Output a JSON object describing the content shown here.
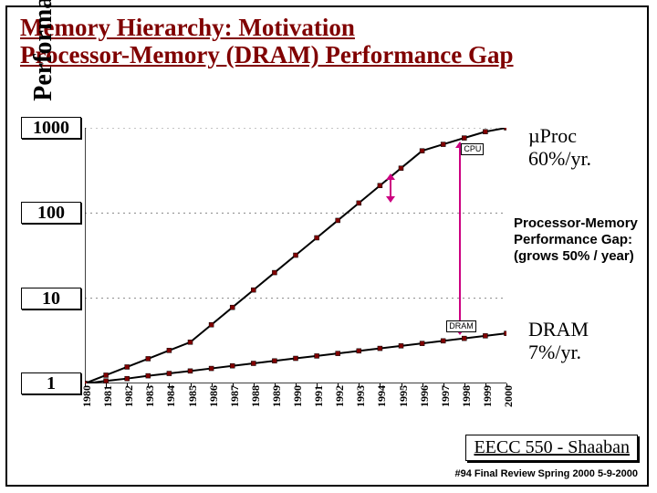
{
  "title_line1": "Memory Hierarchy:  Motivation",
  "title_line2": "Processor-Memory (DRAM) Performance Gap",
  "ylabel": "Performance",
  "chart": {
    "type": "line",
    "log_y": true,
    "ylim": [
      1,
      1000
    ],
    "yticklabels": [
      "1",
      "10",
      "100",
      "1000"
    ],
    "ytickvals": [
      1,
      10,
      100,
      1000
    ],
    "xlim": [
      1980,
      2000
    ],
    "xticklabels": [
      "1980",
      "1981",
      "1982",
      "1983",
      "1984",
      "1985",
      "1986",
      "1987",
      "1988",
      "1989",
      "1990",
      "1991",
      "1992",
      "1993",
      "1994",
      "1995",
      "1996",
      "1997",
      "1998",
      "1999",
      "2000"
    ],
    "grid_color": "#888888",
    "background_color": "#ffffff",
    "axis_color": "#000000",
    "line_color": "#000000",
    "marker_color": "#800000",
    "series": {
      "cpu": {
        "label": "CPU",
        "label_pos_year": 1998.2,
        "values": {
          "1980": 1.0,
          "1981": 1.25,
          "1982": 1.56,
          "1983": 1.95,
          "1984": 2.44,
          "1985": 3.05,
          "1986": 4.88,
          "1987": 7.81,
          "1988": 12.5,
          "1989": 20.0,
          "1990": 32.0,
          "1991": 51.2,
          "1992": 81.9,
          "1993": 131,
          "1994": 210,
          "1995": 336,
          "1996": 537,
          "1997": 640,
          "1998": 760,
          "1999": 900,
          "2000": 1000
        }
      },
      "dram": {
        "label": "DRAM",
        "label_pos_year": 1997.5,
        "values": {
          "1980": 1.0,
          "1981": 1.07,
          "1982": 1.14,
          "1983": 1.23,
          "1984": 1.31,
          "1985": 1.4,
          "1986": 1.5,
          "1987": 1.61,
          "1988": 1.72,
          "1989": 1.84,
          "1990": 1.97,
          "1991": 2.1,
          "1992": 2.25,
          "1993": 2.41,
          "1994": 2.58,
          "1995": 2.76,
          "1996": 2.95,
          "1997": 3.16,
          "1998": 3.38,
          "1999": 3.62,
          "2000": 3.87
        }
      }
    }
  },
  "annotations": {
    "cpu": "µProc\n60%/yr.",
    "gap": "Processor-Memory\nPerformance Gap:\n(grows 50% / year)",
    "dram": "DRAM\n7%/yr."
  },
  "footer_main": "EECC 550 - Shaaban",
  "footer_sub": "#94   Final Review    Spring 2000   5-9-2000"
}
